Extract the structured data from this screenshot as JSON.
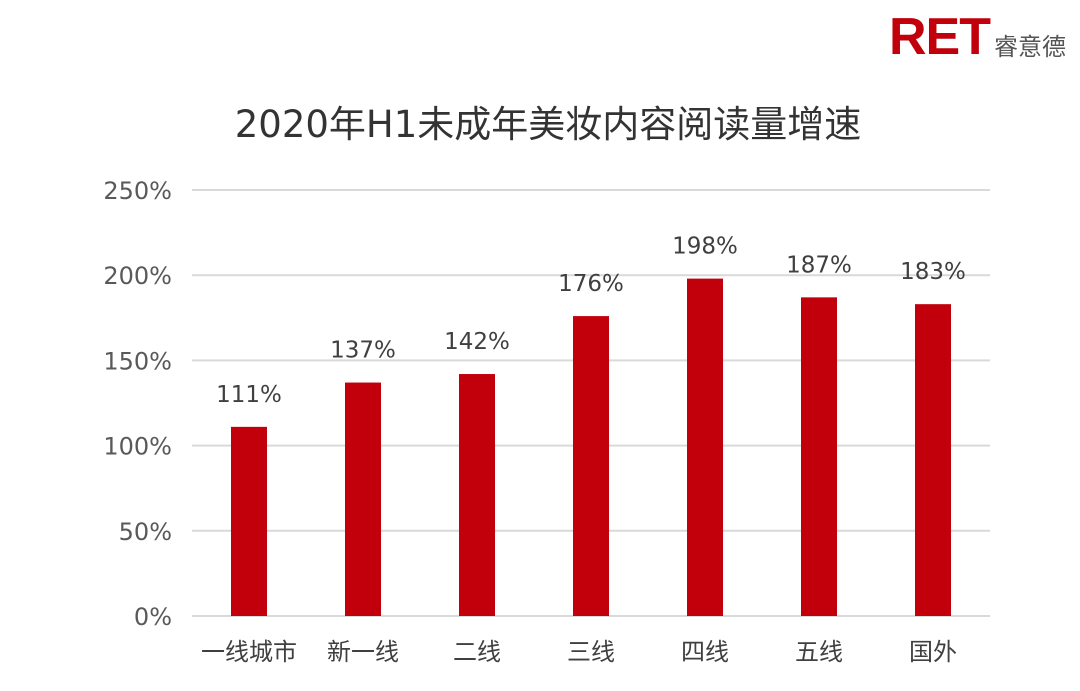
{
  "logo": {
    "mark": "RET",
    "name": "睿意德"
  },
  "chart_data": {
    "type": "bar",
    "title": "2020年H1未成年美妆内容阅读量增速",
    "categories": [
      "一线城市",
      "新一线",
      "二线",
      "三线",
      "四线",
      "五线",
      "国外"
    ],
    "values": [
      111,
      137,
      142,
      176,
      198,
      187,
      183
    ],
    "data_labels": [
      "111%",
      "137%",
      "142%",
      "176%",
      "198%",
      "187%",
      "183%"
    ],
    "yticks": [
      "0%",
      "50%",
      "100%",
      "150%",
      "200%",
      "250%"
    ],
    "ylim": [
      0,
      250
    ],
    "grid": true,
    "legend": "none",
    "bar_color": "#c1000c",
    "grid_color": "#d9d9d9"
  }
}
